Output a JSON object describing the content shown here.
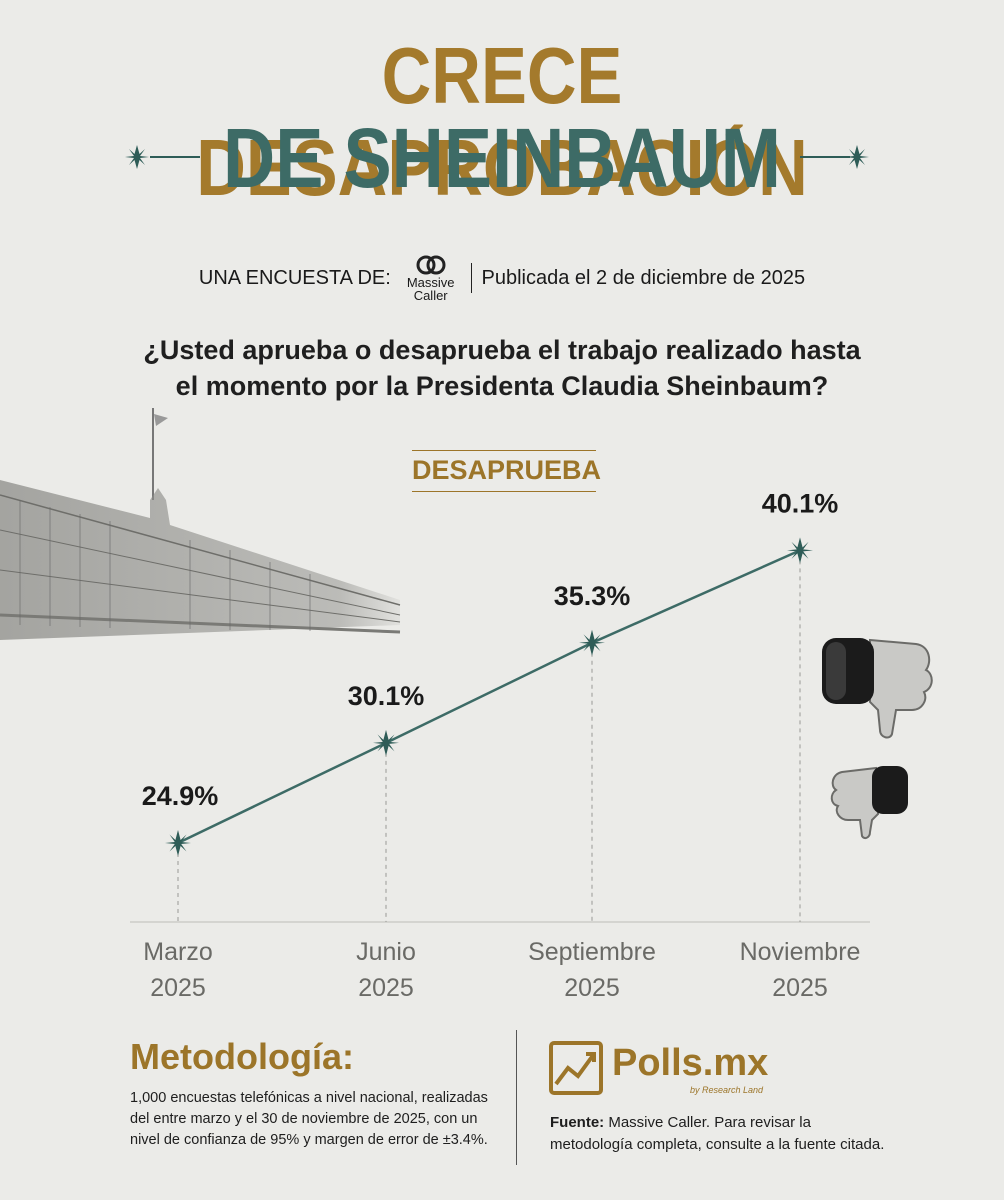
{
  "header": {
    "title_line1": "CRECE DESAPROBACIÓN",
    "title_line2": "DE SHEINBAUM",
    "byline_prefix": "UNA ENCUESTA DE:",
    "pollster_logo_line1": "Massive",
    "pollster_logo_line2": "Caller",
    "published": "Publicada el 2 de diciembre de 2025"
  },
  "question": {
    "line1": "¿Usted aprueba o desaprueba el trabajo realizado hasta",
    "line2": "el momento por la Presidenta Claudia Sheinbaum?"
  },
  "series_label": "DESAPRUEBA",
  "chart_data": {
    "type": "line",
    "title": "DESAPRUEBA",
    "x": [
      [
        "Marzo",
        "2025"
      ],
      [
        "Junio",
        "2025"
      ],
      [
        "Septiembre",
        "2025"
      ],
      [
        "Noviembre",
        "2025"
      ]
    ],
    "series": [
      {
        "values": [
          24.9,
          30.1,
          35.3,
          40.1
        ],
        "labels": [
          "24.9%",
          "30.1%",
          "35.3%",
          "40.1%"
        ]
      }
    ],
    "grid": false,
    "colors": {
      "line": "#3d6b66",
      "marker": "#2e5c57"
    }
  },
  "footer": {
    "methodology_title": "Metodología:",
    "methodology_text": "1,000 encuestas telefónicas a nivel nacional, realizadas del entre marzo y el 30 de noviembre de 2025, con un nivel de confianza de 95% y margen de error de ±3.4%.",
    "brand_name": "Polls.mx",
    "brand_sub": "by Research Land",
    "source_label": "Fuente:",
    "source_text": "Massive Caller. Para revisar la metodología completa, consulte a la fuente citada."
  },
  "colors": {
    "background": "#ebebe8",
    "gold": "#a47a2c",
    "teal": "#3d6b66"
  },
  "icons": [
    "star-ornament-icon",
    "massive-caller-logo-icon",
    "thumbs-down-icon",
    "polls-chart-logo-icon",
    "palace-building-illustration"
  ]
}
